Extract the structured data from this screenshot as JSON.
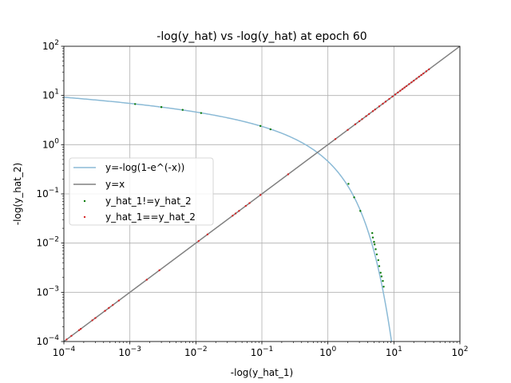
{
  "chart_data": {
    "type": "scatter",
    "title": "-log(y_hat) vs -log(y_hat) at epoch 60",
    "xlabel": "-log(y_hat_1)",
    "ylabel": "-log(y_hat_2)",
    "xscale": "log",
    "yscale": "log",
    "xlim": [
      0.0001,
      100
    ],
    "ylim": [
      0.0001,
      100
    ],
    "x_ticks": [
      {
        "value": 0.0001,
        "base": "10",
        "exp": "−4"
      },
      {
        "value": 0.001,
        "base": "10",
        "exp": "−3"
      },
      {
        "value": 0.01,
        "base": "10",
        "exp": "−2"
      },
      {
        "value": 0.1,
        "base": "10",
        "exp": "−1"
      },
      {
        "value": 1,
        "base": "10",
        "exp": "0"
      },
      {
        "value": 10,
        "base": "10",
        "exp": "1"
      },
      {
        "value": 100,
        "base": "10",
        "exp": "2"
      }
    ],
    "y_ticks": [
      {
        "value": 0.0001,
        "base": "10",
        "exp": "−4"
      },
      {
        "value": 0.001,
        "base": "10",
        "exp": "−3"
      },
      {
        "value": 0.01,
        "base": "10",
        "exp": "−2"
      },
      {
        "value": 0.1,
        "base": "10",
        "exp": "−1"
      },
      {
        "value": 1,
        "base": "10",
        "exp": "0"
      },
      {
        "value": 10,
        "base": "10",
        "exp": "1"
      },
      {
        "value": 100,
        "base": "10",
        "exp": "2"
      }
    ],
    "grid": true,
    "legend_position": "center-left",
    "series": [
      {
        "name": "y=-log(1-e^(-x))",
        "kind": "line",
        "color": "#8bbad6"
      },
      {
        "name": "y=x",
        "kind": "line",
        "color": "#808080"
      },
      {
        "name": "y_hat_1!=y_hat_2",
        "kind": "scatter",
        "color": "#0a7a0a",
        "points": [
          [
            0.0012,
            6.7
          ],
          [
            0.003,
            5.8
          ],
          [
            0.0063,
            5.1
          ],
          [
            0.012,
            4.4
          ],
          [
            0.095,
            2.4
          ],
          [
            0.135,
            2.05
          ],
          [
            2.05,
            0.16
          ],
          [
            2.5,
            0.085
          ],
          [
            3.1,
            0.045
          ],
          [
            4.7,
            0.016
          ],
          [
            4.8,
            0.013
          ],
          [
            5.0,
            0.0106
          ],
          [
            5.1,
            0.0094
          ],
          [
            5.3,
            0.0075
          ],
          [
            5.5,
            0.0059
          ],
          [
            5.8,
            0.0045
          ],
          [
            6.0,
            0.0034
          ],
          [
            6.3,
            0.0025
          ],
          [
            6.5,
            0.0021
          ],
          [
            6.8,
            0.0017
          ],
          [
            7.0,
            0.0013
          ]
        ]
      },
      {
        "name": "y_hat_1==y_hat_2",
        "kind": "scatter",
        "color": "#d62728",
        "points": [
          [
            0.00011,
            0.00011
          ],
          [
            0.00013,
            0.00013
          ],
          [
            0.00017,
            0.00017
          ],
          [
            0.00018,
            0.00018
          ],
          [
            0.00027,
            0.00027
          ],
          [
            0.0003,
            0.0003
          ],
          [
            0.00042,
            0.00042
          ],
          [
            0.00048,
            0.00048
          ],
          [
            0.00055,
            0.00055
          ],
          [
            0.00068,
            0.00068
          ],
          [
            0.0018,
            0.0018
          ],
          [
            0.0028,
            0.0028
          ],
          [
            0.011,
            0.011
          ],
          [
            0.015,
            0.015
          ],
          [
            0.036,
            0.036
          ],
          [
            0.04,
            0.04
          ],
          [
            0.045,
            0.045
          ],
          [
            0.057,
            0.057
          ],
          [
            0.065,
            0.065
          ],
          [
            0.095,
            0.095
          ],
          [
            0.25,
            0.25
          ],
          [
            1.3,
            1.3
          ],
          [
            2.0,
            2.0
          ],
          [
            2.6,
            2.6
          ],
          [
            3.0,
            3.0
          ],
          [
            3.3,
            3.3
          ],
          [
            3.8,
            3.8
          ],
          [
            4.2,
            4.2
          ],
          [
            4.8,
            4.8
          ],
          [
            5.2,
            5.2
          ],
          [
            6.0,
            6.0
          ],
          [
            6.8,
            6.8
          ],
          [
            7.5,
            7.5
          ],
          [
            8.5,
            8.5
          ],
          [
            9.5,
            9.5
          ],
          [
            10.5,
            10.5
          ],
          [
            11.5,
            11.5
          ],
          [
            12.5,
            12.5
          ],
          [
            13.5,
            13.5
          ],
          [
            14.5,
            14.5
          ],
          [
            15.5,
            15.5
          ],
          [
            17,
            17
          ],
          [
            18.5,
            18.5
          ],
          [
            20,
            20
          ],
          [
            22,
            22
          ],
          [
            24,
            24
          ],
          [
            26,
            26
          ],
          [
            28,
            28
          ],
          [
            31,
            31
          ],
          [
            34,
            34
          ]
        ]
      }
    ]
  }
}
